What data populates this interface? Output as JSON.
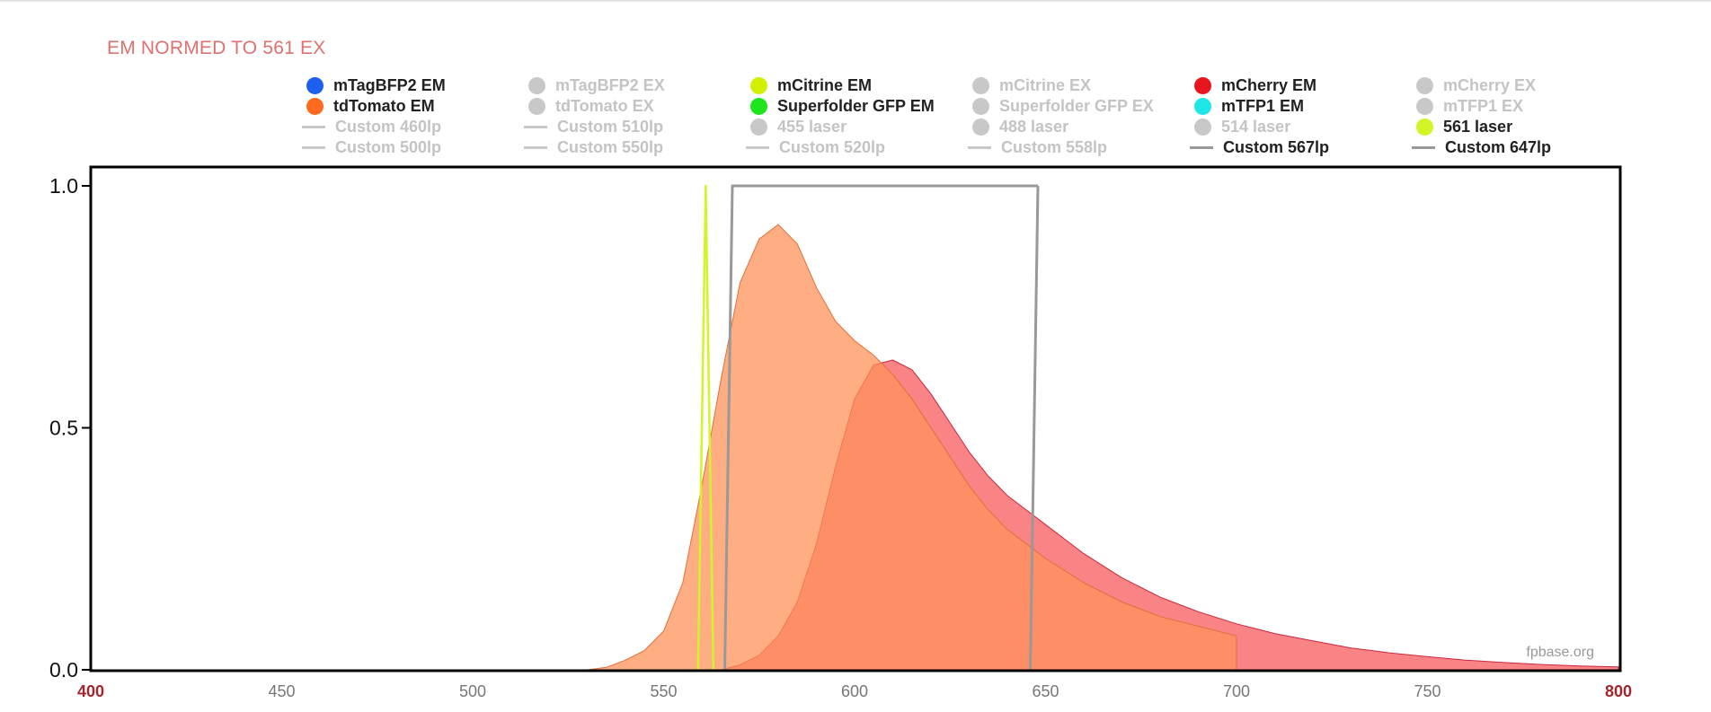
{
  "chart_title": "EM NORMED TO 561 EX",
  "credit": "fpbase.org",
  "legend": [
    {
      "label": "mTagBFP2 EM",
      "shape": "dot",
      "color": "#1e5ff0",
      "active": true
    },
    {
      "label": "mTagBFP2 EX",
      "shape": "dot",
      "color": "#c8c8c8",
      "active": false
    },
    {
      "label": "mCitrine EM",
      "shape": "dot",
      "color": "#d2f000",
      "active": true
    },
    {
      "label": "mCitrine EX",
      "shape": "dot",
      "color": "#c8c8c8",
      "active": false
    },
    {
      "label": "mCherry EM",
      "shape": "dot",
      "color": "#e8141e",
      "active": true
    },
    {
      "label": "mCherry EX",
      "shape": "dot",
      "color": "#c8c8c8",
      "active": false
    },
    {
      "label": "tdTomato EM",
      "shape": "dot",
      "color": "#ff6a1e",
      "active": true
    },
    {
      "label": "tdTomato EX",
      "shape": "dot",
      "color": "#c8c8c8",
      "active": false
    },
    {
      "label": "Superfolder GFP EM",
      "shape": "dot",
      "color": "#1ee61e",
      "active": true
    },
    {
      "label": "Superfolder GFP EX",
      "shape": "dot",
      "color": "#c8c8c8",
      "active": false
    },
    {
      "label": "mTFP1 EM",
      "shape": "dot",
      "color": "#1ee6e6",
      "active": true
    },
    {
      "label": "mTFP1 EX",
      "shape": "dot",
      "color": "#c8c8c8",
      "active": false
    },
    {
      "label": "Custom 460lp",
      "shape": "line",
      "color": "#c8c8c8",
      "active": false
    },
    {
      "label": "Custom 510lp",
      "shape": "line",
      "color": "#c8c8c8",
      "active": false
    },
    {
      "label": "455 laser",
      "shape": "dot",
      "color": "#c8c8c8",
      "active": false
    },
    {
      "label": "488 laser",
      "shape": "dot",
      "color": "#c8c8c8",
      "active": false
    },
    {
      "label": "514 laser",
      "shape": "dot",
      "color": "#c8c8c8",
      "active": false
    },
    {
      "label": "561 laser",
      "shape": "dot",
      "color": "#d2f528",
      "active": true
    },
    {
      "label": "Custom 500lp",
      "shape": "line",
      "color": "#c8c8c8",
      "active": false
    },
    {
      "label": "Custom 550lp",
      "shape": "line",
      "color": "#c8c8c8",
      "active": false
    },
    {
      "label": "Custom 520lp",
      "shape": "line",
      "color": "#c8c8c8",
      "active": false
    },
    {
      "label": "Custom 558lp",
      "shape": "line",
      "color": "#c8c8c8",
      "active": false
    },
    {
      "label": "Custom 567lp",
      "shape": "line",
      "color": "#999999",
      "active": true
    },
    {
      "label": "Custom 647lp",
      "shape": "line",
      "color": "#999999",
      "active": true
    }
  ],
  "chart_data": {
    "type": "area",
    "xlim": [
      400,
      800
    ],
    "ylim": [
      0,
      1.0
    ],
    "x_ticks": [
      400,
      450,
      500,
      550,
      600,
      650,
      700,
      750,
      800
    ],
    "x_tick_labels": [
      "400",
      "450",
      "500",
      "550",
      "600",
      "650",
      "700",
      "750",
      "800"
    ],
    "y_ticks": [
      0,
      0.5,
      1.0
    ],
    "y_tick_labels": [
      "0.0",
      "0.5",
      "1.0"
    ],
    "series": [
      {
        "name": "mCherry EM",
        "color": "#f8595e",
        "x": [
          565,
          570,
          575,
          580,
          585,
          590,
          595,
          600,
          605,
          610,
          615,
          620,
          625,
          630,
          635,
          640,
          645,
          650,
          655,
          660,
          670,
          680,
          690,
          700,
          710,
          720,
          730,
          740,
          750,
          760,
          770,
          780,
          790,
          800
        ],
        "y": [
          0.0,
          0.01,
          0.03,
          0.07,
          0.14,
          0.26,
          0.42,
          0.56,
          0.63,
          0.64,
          0.62,
          0.57,
          0.51,
          0.45,
          0.4,
          0.36,
          0.33,
          0.3,
          0.27,
          0.24,
          0.19,
          0.15,
          0.12,
          0.095,
          0.075,
          0.06,
          0.045,
          0.035,
          0.027,
          0.02,
          0.015,
          0.011,
          0.008,
          0.006
        ]
      },
      {
        "name": "tdTomato EM",
        "color": "#ff9259",
        "x": [
          530,
          535,
          540,
          545,
          550,
          555,
          560,
          565,
          570,
          575,
          580,
          585,
          590,
          595,
          600,
          605,
          610,
          615,
          620,
          625,
          630,
          635,
          640,
          645,
          650,
          660,
          670,
          680,
          690,
          700
        ],
        "y": [
          0.0,
          0.005,
          0.02,
          0.04,
          0.08,
          0.18,
          0.38,
          0.6,
          0.8,
          0.89,
          0.92,
          0.88,
          0.79,
          0.72,
          0.68,
          0.65,
          0.61,
          0.56,
          0.5,
          0.44,
          0.38,
          0.33,
          0.29,
          0.26,
          0.23,
          0.18,
          0.14,
          0.11,
          0.09,
          0.07
        ]
      },
      {
        "name": "561 laser",
        "color": "#d2f528",
        "x": [
          559,
          561,
          563
        ],
        "y": [
          0.0,
          1.0,
          0.0
        ]
      },
      {
        "name": "Custom 567lp",
        "color": "#999999",
        "x": [
          566,
          568,
          648,
          648
        ],
        "y": [
          0.0,
          1.0,
          1.0,
          1.0
        ]
      },
      {
        "name": "Custom 647lp",
        "color": "#999999",
        "x": [
          648,
          646
        ],
        "y": [
          1.0,
          0.0
        ]
      }
    ]
  }
}
